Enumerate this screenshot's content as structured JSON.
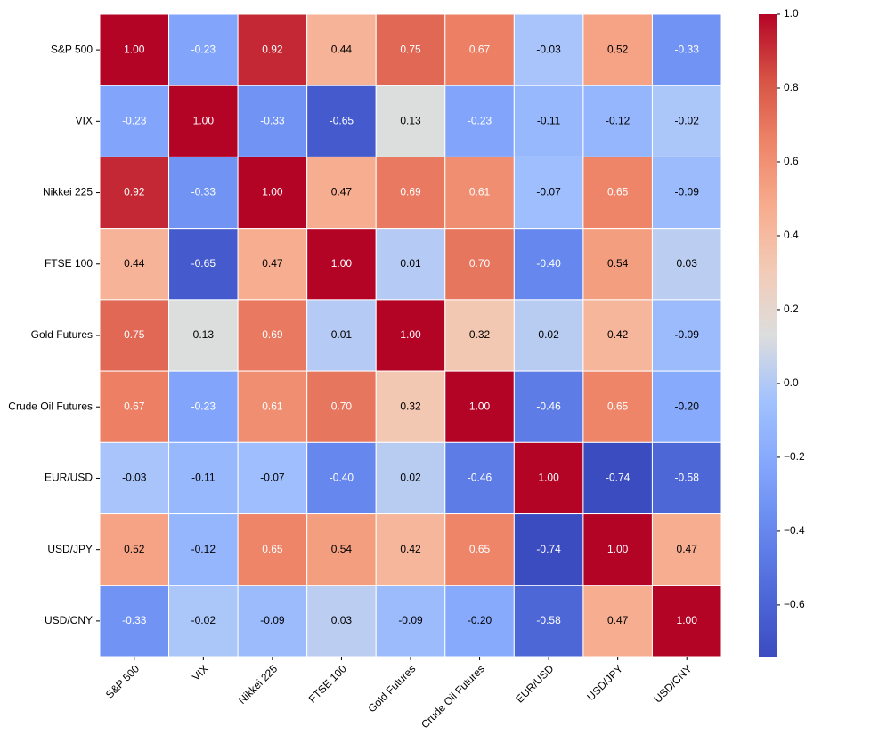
{
  "chart_data": {
    "type": "heatmap",
    "colormap": "coolwarm",
    "xcategories": [
      "S&P 500",
      "VIX",
      "Nikkei 225",
      "FTSE 100",
      "Gold Futures",
      "Crude Oil Futures",
      "EUR/USD",
      "USD/JPY",
      "USD/CNY"
    ],
    "ycategories": [
      "S&P 500",
      "VIX",
      "Nikkei 225",
      "FTSE 100",
      "Gold Futures",
      "Crude Oil Futures",
      "EUR/USD",
      "USD/JPY",
      "USD/CNY"
    ],
    "values": [
      [
        1,
        -0.23,
        0.92,
        0.44,
        0.75,
        0.67,
        -0.03,
        0.52,
        -0.33
      ],
      [
        -0.23,
        1,
        -0.33,
        -0.65,
        0.13,
        -0.23,
        -0.11,
        -0.12,
        -0.02
      ],
      [
        0.92,
        -0.33,
        1,
        0.47,
        0.69,
        0.61,
        -0.07,
        0.65,
        -0.09
      ],
      [
        0.44,
        -0.65,
        0.47,
        1,
        0.01,
        0.7,
        -0.4,
        0.54,
        0.03
      ],
      [
        0.75,
        0.13,
        0.69,
        0.01,
        1,
        0.32,
        0.02,
        0.42,
        -0.09
      ],
      [
        0.67,
        -0.23,
        0.61,
        0.7,
        0.32,
        1,
        -0.46,
        0.65,
        -0.2
      ],
      [
        -0.03,
        -0.11,
        -0.07,
        -0.4,
        0.02,
        -0.46,
        1,
        -0.74,
        -0.58
      ],
      [
        0.52,
        -0.12,
        0.65,
        0.54,
        0.42,
        0.65,
        -0.74,
        1,
        0.47
      ],
      [
        -0.33,
        -0.02,
        -0.09,
        0.03,
        -0.09,
        -0.2,
        -0.58,
        0.47,
        1
      ]
    ],
    "value_labels": [
      [
        "1.00",
        "-0.23",
        "0.92",
        "0.44",
        "0.75",
        "0.67",
        "-0.03",
        "0.52",
        "-0.33"
      ],
      [
        "-0.23",
        "1.00",
        "-0.33",
        "-0.65",
        "0.13",
        "-0.23",
        "-0.11",
        "-0.12",
        "-0.02"
      ],
      [
        "0.92",
        "-0.33",
        "1.00",
        "0.47",
        "0.69",
        "0.61",
        "-0.07",
        "0.65",
        "-0.09"
      ],
      [
        "0.44",
        "-0.65",
        "0.47",
        "1.00",
        "0.01",
        "0.70",
        "-0.40",
        "0.54",
        "0.03"
      ],
      [
        "0.75",
        "0.13",
        "0.69",
        "0.01",
        "1.00",
        "0.32",
        "0.02",
        "0.42",
        "-0.09"
      ],
      [
        "0.67",
        "-0.23",
        "0.61",
        "0.70",
        "0.32",
        "1.00",
        "-0.46",
        "0.65",
        "-0.20"
      ],
      [
        "-0.03",
        "-0.11",
        "-0.07",
        "-0.40",
        "0.02",
        "-0.46",
        "1.00",
        "-0.74",
        "-0.58"
      ],
      [
        "0.52",
        "-0.12",
        "0.65",
        "0.54",
        "0.42",
        "0.65",
        "-0.74",
        "1.00",
        "0.47"
      ],
      [
        "-0.33",
        "-0.02",
        "-0.09",
        "0.03",
        "-0.09",
        "-0.20",
        "-0.58",
        "0.47",
        "1.00"
      ]
    ],
    "clim": [
      -0.74,
      1
    ],
    "cticks": [
      {
        "value": 1,
        "label": "1.0"
      },
      {
        "value": 0.8,
        "label": "0.8"
      },
      {
        "value": 0.6,
        "label": "0.6"
      },
      {
        "value": 0.4,
        "label": "0.4"
      },
      {
        "value": 0.2,
        "label": "0.2"
      },
      {
        "value": 0,
        "label": "0.0"
      },
      {
        "value": -0.2,
        "label": "−0.2"
      },
      {
        "value": -0.4,
        "label": "−0.4"
      },
      {
        "value": -0.6,
        "label": "−0.6"
      }
    ]
  }
}
